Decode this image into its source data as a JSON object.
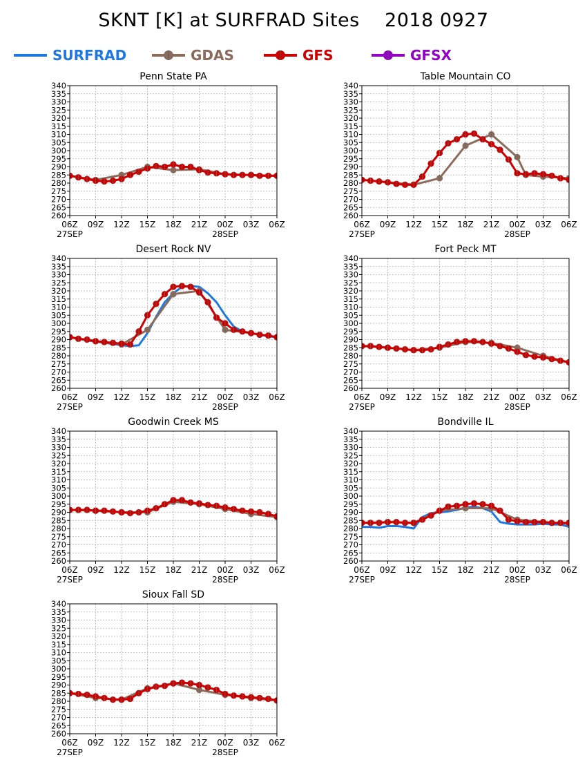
{
  "title": "SKNT [K] at SURFRAD Sites    2018 0927",
  "legend": [
    {
      "name": "SURFRAD",
      "color": "#1f78e0",
      "marker": false
    },
    {
      "name": "GDAS",
      "color": "#8b6b5c",
      "marker": true
    },
    {
      "name": "GFS",
      "color": "#cc0000",
      "marker": true
    },
    {
      "name": "GFSX",
      "color": "#9400c8",
      "marker": true
    }
  ],
  "axis": {
    "y_ticks": [
      260,
      265,
      270,
      275,
      280,
      285,
      290,
      295,
      300,
      305,
      310,
      315,
      320,
      325,
      330,
      335,
      340
    ],
    "ylim": [
      260,
      340
    ],
    "x_hours": [
      0,
      24
    ],
    "x_tick_hours": [
      0,
      3,
      6,
      9,
      12,
      15,
      18,
      21,
      24
    ],
    "x_tick_labels": [
      "06Z",
      "09Z",
      "12Z",
      "15Z",
      "18Z",
      "21Z",
      "00Z",
      "03Z",
      "06Z"
    ],
    "x_date_labels": [
      {
        "hour": 0,
        "label": "27SEP"
      },
      {
        "hour": 18,
        "label": "28SEP"
      }
    ],
    "grid": true
  },
  "chart_data": [
    {
      "type": "line",
      "title": "Penn State PA",
      "series": [
        {
          "name": "GDAS",
          "x": [
            0,
            3,
            6,
            9,
            12,
            15,
            18,
            21,
            24
          ],
          "y": [
            284.5,
            282,
            285,
            290,
            288,
            288.5,
            285.5,
            285,
            284.5
          ]
        },
        {
          "name": "GFS",
          "x": [
            0,
            1,
            2,
            3,
            4,
            5,
            6,
            7,
            8,
            9,
            10,
            11,
            12,
            13,
            14,
            15,
            16,
            17,
            18,
            19,
            20,
            21,
            22,
            23,
            24
          ],
          "y": [
            284.5,
            283.5,
            282.5,
            281.5,
            281,
            281.5,
            282.5,
            285,
            287,
            289,
            290.5,
            290,
            291.5,
            290,
            290,
            288,
            286.5,
            286,
            285.5,
            285,
            285,
            285,
            284.5,
            284.5,
            284.5
          ]
        }
      ]
    },
    {
      "type": "line",
      "title": "Table Mountain CO",
      "series": [
        {
          "name": "GDAS",
          "x": [
            0,
            3,
            6,
            9,
            12,
            15,
            18,
            19,
            21,
            24
          ],
          "y": [
            282,
            280.5,
            279,
            283,
            303,
            310,
            296,
            285,
            284,
            283
          ]
        },
        {
          "name": "GFS",
          "x": [
            0,
            1,
            2,
            3,
            4,
            5,
            6,
            7,
            8,
            9,
            10,
            11,
            12,
            13,
            14,
            15,
            16,
            17,
            18,
            19,
            20,
            21,
            22,
            23,
            24
          ],
          "y": [
            282,
            281.5,
            281,
            280.5,
            279.5,
            279,
            279,
            284,
            292,
            298.5,
            304.5,
            307,
            310,
            310.5,
            307,
            304,
            300.5,
            294.5,
            286,
            285.5,
            286,
            285.5,
            284.5,
            283,
            282
          ]
        }
      ]
    },
    {
      "type": "line",
      "title": "Desert Rock NV",
      "series": [
        {
          "name": "SURFRAD",
          "x": [
            0,
            2,
            4,
            6,
            7,
            8,
            9,
            10,
            11,
            12,
            13,
            14,
            15,
            16,
            17,
            18,
            19,
            20,
            21,
            22,
            23,
            24
          ],
          "y": [
            291.5,
            289.5,
            288,
            286.5,
            286,
            286.5,
            294,
            304,
            313,
            318.5,
            322.5,
            323,
            322.5,
            318.5,
            313,
            305,
            298,
            295,
            294,
            293,
            292,
            291.5
          ]
        },
        {
          "name": "GDAS",
          "x": [
            0,
            3,
            6,
            9,
            12,
            15,
            18,
            21,
            24
          ],
          "y": [
            291.5,
            289,
            287,
            296,
            318,
            320,
            296,
            294,
            291.5
          ]
        },
        {
          "name": "GFS",
          "x": [
            0,
            1,
            2,
            3,
            4,
            5,
            6,
            7,
            8,
            9,
            10,
            11,
            12,
            13,
            14,
            15,
            16,
            17,
            18,
            19,
            20,
            21,
            22,
            23,
            24
          ],
          "y": [
            291.5,
            290.5,
            290,
            289,
            288.5,
            288,
            287.5,
            287,
            295,
            305,
            312,
            318,
            322.5,
            323,
            322.5,
            319,
            313,
            303.5,
            300,
            296,
            295,
            294,
            293,
            292.5,
            291.5
          ]
        }
      ]
    },
    {
      "type": "line",
      "title": "Fort Peck MT",
      "series": [
        {
          "name": "GDAS",
          "x": [
            0,
            3,
            6,
            9,
            12,
            15,
            18,
            21,
            24
          ],
          "y": [
            286,
            285,
            283.5,
            285,
            288.5,
            288,
            285,
            280,
            276
          ]
        },
        {
          "name": "GFS",
          "x": [
            0,
            1,
            2,
            3,
            4,
            5,
            6,
            7,
            8,
            9,
            10,
            11,
            12,
            13,
            14,
            15,
            16,
            17,
            18,
            19,
            20,
            21,
            22,
            23,
            24
          ],
          "y": [
            286,
            286,
            285.5,
            285,
            284.5,
            284,
            283.5,
            283.5,
            284,
            285.5,
            287,
            288.5,
            289,
            289,
            288.5,
            287.5,
            286,
            284.5,
            282.5,
            280.5,
            279.5,
            279,
            278,
            277,
            276
          ]
        }
      ]
    },
    {
      "type": "line",
      "title": "Goodwin Creek MS",
      "series": [
        {
          "name": "GDAS",
          "x": [
            0,
            3,
            6,
            9,
            12,
            15,
            18,
            21,
            24
          ],
          "y": [
            291.5,
            291,
            290,
            290,
            296.5,
            295,
            292,
            289,
            287
          ]
        },
        {
          "name": "GFS",
          "x": [
            0,
            1,
            2,
            3,
            4,
            5,
            6,
            7,
            8,
            9,
            10,
            11,
            12,
            13,
            14,
            15,
            16,
            17,
            18,
            19,
            20,
            21,
            22,
            23,
            24
          ],
          "y": [
            291.5,
            291.5,
            291.5,
            291,
            291,
            290.5,
            290,
            289.5,
            290,
            291,
            292.5,
            295,
            297.5,
            297.5,
            296,
            295.5,
            294.5,
            294,
            293,
            292,
            291,
            290.5,
            290,
            289,
            287.5
          ]
        }
      ]
    },
    {
      "type": "line",
      "title": "Bondville IL",
      "series": [
        {
          "name": "SURFRAD",
          "x": [
            0,
            1,
            2,
            3,
            4,
            5,
            6,
            7,
            8,
            9,
            10,
            11,
            12,
            13,
            14,
            15,
            16,
            17,
            18,
            19,
            20,
            21,
            22,
            23,
            24
          ],
          "y": [
            281,
            281,
            280.5,
            281.5,
            281.5,
            281,
            280,
            287,
            289.5,
            290,
            290.5,
            291.5,
            293,
            293.5,
            292.5,
            290.5,
            284,
            283,
            282.5,
            282.5,
            282.5,
            283,
            282.5,
            282.5,
            281
          ]
        },
        {
          "name": "GDAS",
          "x": [
            0,
            3,
            6,
            9,
            12,
            15,
            18,
            21,
            24
          ],
          "y": [
            283.5,
            284,
            283.5,
            291,
            292.5,
            292.5,
            285.5,
            284,
            283
          ]
        },
        {
          "name": "GFS",
          "x": [
            0,
            1,
            2,
            3,
            4,
            5,
            6,
            7,
            8,
            9,
            10,
            11,
            12,
            13,
            14,
            15,
            16,
            17,
            18,
            19,
            20,
            21,
            22,
            23,
            24
          ],
          "y": [
            283.5,
            283.5,
            283.5,
            284,
            284,
            283.5,
            283.5,
            285.5,
            288,
            291,
            293.5,
            294,
            295,
            295.5,
            295,
            294,
            291,
            285.5,
            284.5,
            284,
            284,
            284,
            283.5,
            283.5,
            283.5
          ]
        }
      ]
    },
    {
      "type": "line",
      "title": "Sioux Fall SD",
      "series": [
        {
          "name": "GDAS",
          "x": [
            0,
            3,
            6,
            9,
            12,
            15,
            18,
            21,
            24
          ],
          "y": [
            285,
            282,
            281,
            288,
            291,
            287,
            284,
            282,
            280.5
          ]
        },
        {
          "name": "GFS",
          "x": [
            0,
            1,
            2,
            3,
            4,
            5,
            6,
            7,
            8,
            9,
            10,
            11,
            12,
            13,
            14,
            15,
            16,
            17,
            18,
            19,
            20,
            21,
            22,
            23,
            24
          ],
          "y": [
            285,
            284.5,
            284,
            283,
            282,
            281,
            281,
            281.5,
            285,
            287.5,
            289,
            289.5,
            291,
            291.5,
            291,
            290,
            288.5,
            287,
            284.5,
            283.5,
            283,
            282.5,
            282,
            281.5,
            280.5
          ]
        }
      ]
    }
  ]
}
